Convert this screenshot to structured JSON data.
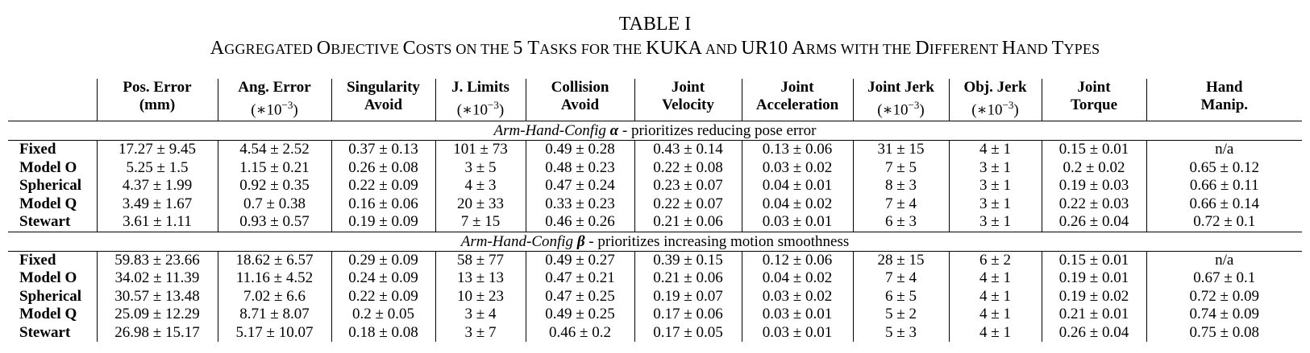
{
  "caption": {
    "number": "TABLE I",
    "title_parts": [
      {
        "t": "A",
        "big": true
      },
      {
        "t": "GGREGATED ",
        "big": false
      },
      {
        "t": "O",
        "big": true
      },
      {
        "t": "BJECTIVE ",
        "big": false
      },
      {
        "t": "C",
        "big": true
      },
      {
        "t": "OSTS ON THE ",
        "big": false
      },
      {
        "t": "5 T",
        "big": true
      },
      {
        "t": "ASKS FOR THE ",
        "big": false
      },
      {
        "t": "KUKA",
        "big": true
      },
      {
        "t": " AND ",
        "big": false
      },
      {
        "t": "UR10 A",
        "big": true
      },
      {
        "t": "RMS WITH THE ",
        "big": false
      },
      {
        "t": "D",
        "big": true
      },
      {
        "t": "IFFERENT ",
        "big": false
      },
      {
        "t": "H",
        "big": true
      },
      {
        "t": "AND ",
        "big": false
      },
      {
        "t": "T",
        "big": true
      },
      {
        "t": "YPES",
        "big": false
      }
    ]
  },
  "columns": [
    {
      "line1": "Pos. Error",
      "line2": "(mm)"
    },
    {
      "line1": "Ang. Error",
      "line2": "(∗10",
      "sup": "−3",
      "close": ")"
    },
    {
      "line1": "Singularity",
      "line2": "Avoid"
    },
    {
      "line1": "J. Limits",
      "line2": "(∗10",
      "sup": "−3",
      "close": ")"
    },
    {
      "line1": "Collision",
      "line2": "Avoid"
    },
    {
      "line1": "Joint",
      "line2": "Velocity"
    },
    {
      "line1": "Joint",
      "line2": "Acceleration"
    },
    {
      "line1": "Joint Jerk",
      "line2": "(∗10",
      "sup": "−3",
      "close": ")"
    },
    {
      "line1": "Obj. Jerk",
      "line2": "(∗10",
      "sup": "−3",
      "close": ")"
    },
    {
      "line1": "Joint",
      "line2": "Torque"
    },
    {
      "line1": "Hand",
      "line2": "Manip."
    }
  ],
  "sections": [
    {
      "label_italic": "Arm-Hand-Config ",
      "greek": "α",
      "label_rest": " - prioritizes reducing pose error",
      "rows": [
        {
          "name": "Fixed",
          "cells": [
            "17.27 ± 9.45",
            "4.54 ± 2.52",
            "0.37 ± 0.13",
            "101 ± 73",
            "0.49 ± 0.28",
            "0.43 ± 0.14",
            "0.13 ± 0.06",
            "31 ± 15",
            "4 ± 1",
            "0.15 ± 0.01",
            "n/a"
          ]
        },
        {
          "name": "Model O",
          "cells": [
            "5.25 ± 1.5",
            "1.15 ± 0.21",
            "0.26 ± 0.08",
            "3 ± 5",
            "0.48 ± 0.23",
            "0.22 ± 0.08",
            "0.03 ± 0.02",
            "7 ± 5",
            "3 ± 1",
            "0.2 ± 0.02",
            "0.65 ± 0.12"
          ]
        },
        {
          "name": "Spherical",
          "cells": [
            "4.37 ± 1.99",
            "0.92 ± 0.35",
            "0.22 ± 0.09",
            "4 ± 3",
            "0.47 ± 0.24",
            "0.23 ± 0.07",
            "0.04 ± 0.01",
            "8 ± 3",
            "3 ± 1",
            "0.19 ± 0.03",
            "0.66 ± 0.11"
          ]
        },
        {
          "name": "Model Q",
          "cells": [
            "3.49 ± 1.67",
            "0.7 ± 0.38",
            "0.16 ± 0.06",
            "20 ± 33",
            "0.33 ± 0.23",
            "0.22 ± 0.07",
            "0.04 ± 0.02",
            "7 ± 4",
            "3 ± 1",
            "0.22 ± 0.03",
            "0.66 ± 0.14"
          ]
        },
        {
          "name": "Stewart",
          "cells": [
            "3.61 ± 1.11",
            "0.93 ± 0.57",
            "0.19 ± 0.09",
            "7 ± 15",
            "0.46 ± 0.26",
            "0.21 ± 0.06",
            "0.03 ± 0.01",
            "6 ± 3",
            "3 ± 1",
            "0.26 ± 0.04",
            "0.72 ± 0.1"
          ]
        }
      ]
    },
    {
      "label_italic": "Arm-Hand-Config ",
      "greek": "β",
      "label_rest": " - prioritizes increasing motion smoothness",
      "rows": [
        {
          "name": "Fixed",
          "cells": [
            "59.83 ± 23.66",
            "18.62 ± 6.57",
            "0.29 ± 0.09",
            "58 ± 77",
            "0.49 ± 0.27",
            "0.39 ± 0.15",
            "0.12 ± 0.06",
            "28 ± 15",
            "6 ± 2",
            "0.15 ± 0.01",
            "n/a"
          ]
        },
        {
          "name": "Model O",
          "cells": [
            "34.02 ± 11.39",
            "11.16 ± 4.52",
            "0.24 ± 0.09",
            "13 ± 13",
            "0.47 ± 0.21",
            "0.21 ± 0.06",
            "0.04 ± 0.02",
            "7 ± 4",
            "4 ± 1",
            "0.19 ± 0.01",
            "0.67 ± 0.1"
          ]
        },
        {
          "name": "Spherical",
          "cells": [
            "30.57 ± 13.48",
            "7.02 ± 6.6",
            "0.22 ± 0.09",
            "10 ± 23",
            "0.47 ± 0.25",
            "0.19 ± 0.07",
            "0.03 ± 0.02",
            "6 ± 5",
            "4 ± 1",
            "0.19 ± 0.02",
            "0.72 ± 0.09"
          ]
        },
        {
          "name": "Model Q",
          "cells": [
            "25.09 ± 12.29",
            "8.71 ± 8.07",
            "0.2 ± 0.05",
            "3 ± 4",
            "0.49 ± 0.25",
            "0.17 ± 0.06",
            "0.03 ± 0.01",
            "5 ± 2",
            "4 ± 1",
            "0.21 ± 0.01",
            "0.74 ± 0.09"
          ]
        },
        {
          "name": "Stewart",
          "cells": [
            "26.98 ± 15.17",
            "5.17 ± 10.07",
            "0.18 ± 0.08",
            "3 ± 7",
            "0.46 ± 0.2",
            "0.17 ± 0.05",
            "0.03 ± 0.01",
            "5 ± 3",
            "4 ± 1",
            "0.26 ± 0.04",
            "0.75 ± 0.08"
          ]
        }
      ]
    }
  ]
}
